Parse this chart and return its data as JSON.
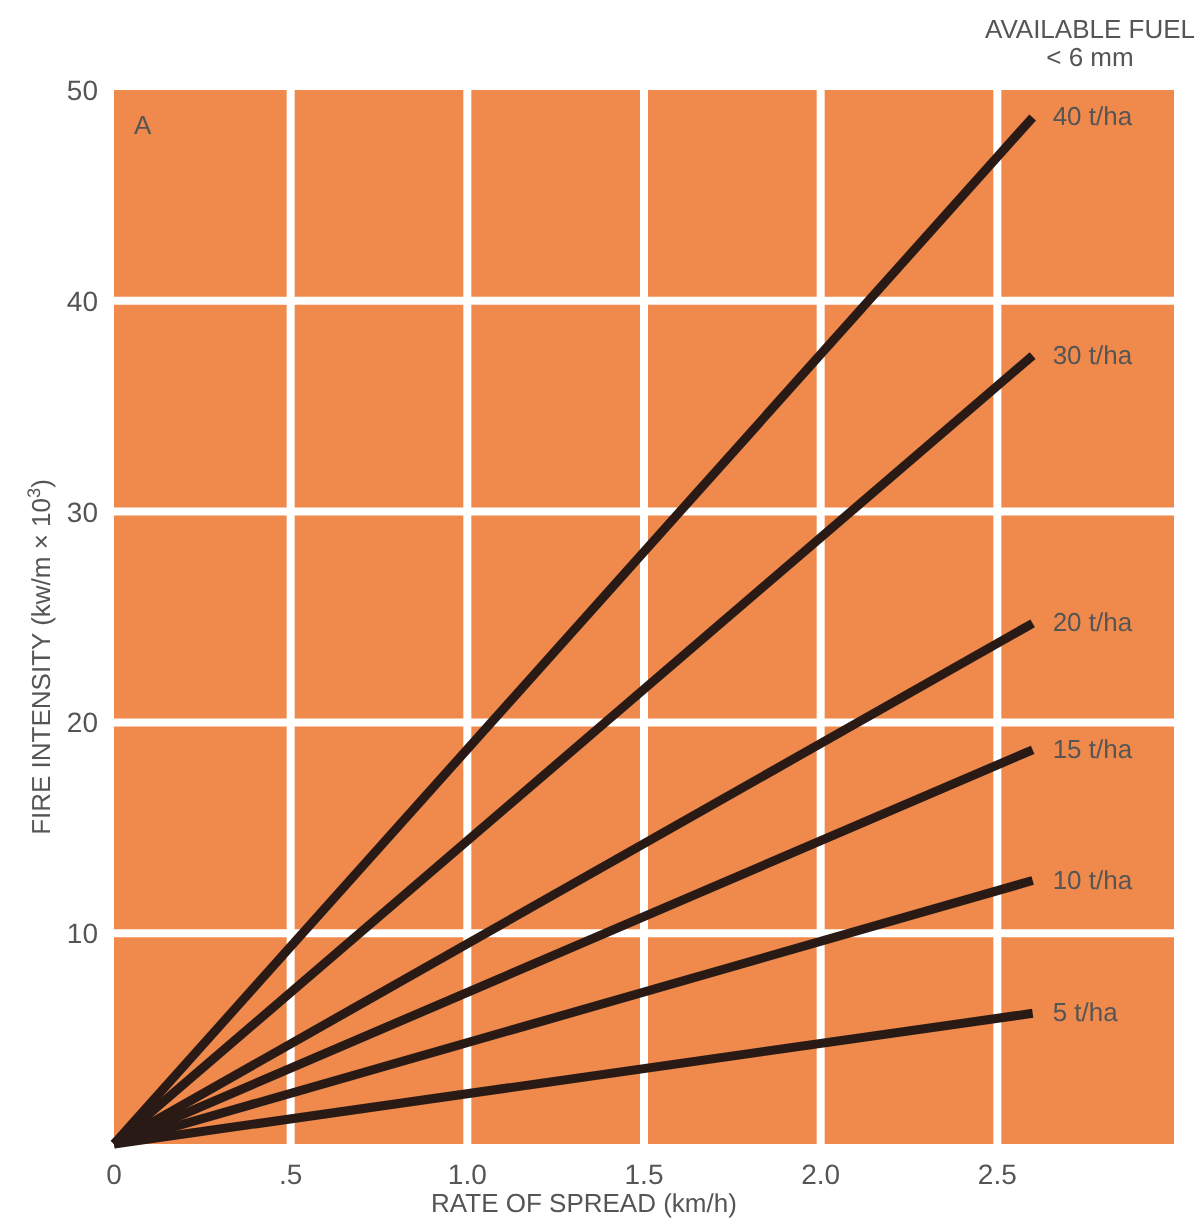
{
  "chart_data": {
    "type": "line",
    "title": "A",
    "xlabel": "RATE OF SPREAD (km/h)",
    "ylabel": "FIRE INTENSITY (kw/m × 10$^{3}$)",
    "annotations": [
      "AVAILABLE FUEL",
      "< 6 mm"
    ],
    "xlim": [
      0,
      3
    ],
    "ylim": [
      0,
      50
    ],
    "xticks": [
      0,
      {
        "value": 0.5,
        "label": ".5"
      },
      {
        "value": 1,
        "label": "1.0"
      },
      {
        "value": 1.5,
        "label": "1.5"
      },
      {
        "value": 2,
        "label": "2.0"
      },
      {
        "value": 2.5,
        "label": "2.5"
      }
    ],
    "yticks": [
      10,
      20,
      30,
      40,
      50
    ],
    "grid": true,
    "line_style": "solid",
    "marker": "none",
    "x": [
      0,
      2.6
    ],
    "series": [
      {
        "name": "40 t/ha",
        "color": "#2a1a16",
        "values": [
          0,
          48.7
        ]
      },
      {
        "name": "30 t/ha",
        "color": "#2a1a16",
        "values": [
          0,
          37.4
        ]
      },
      {
        "name": "20 t/ha",
        "color": "#2a1a16",
        "values": [
          0,
          24.7
        ]
      },
      {
        "name": "15 t/ha",
        "color": "#2a1a16",
        "values": [
          0,
          18.7
        ]
      },
      {
        "name": "10 t/ha",
        "color": "#2a1a16",
        "values": [
          0,
          12.5
        ]
      },
      {
        "name": "5 t/ha",
        "color": "#2a1a16",
        "values": [
          0,
          6.2
        ]
      }
    ]
  }
}
